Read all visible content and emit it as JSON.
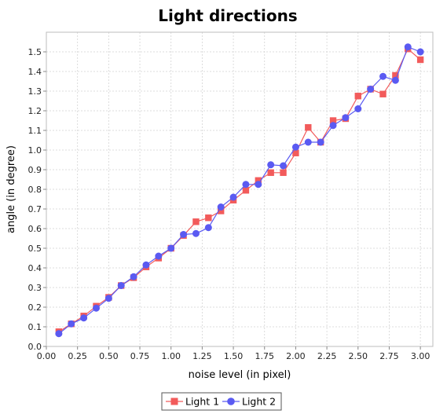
{
  "chart_data": {
    "type": "line",
    "title": "Light directions",
    "xlabel": "noise level (in pixel)",
    "ylabel": "angle (in degree)",
    "xlim": [
      0.0,
      3.1
    ],
    "ylim": [
      0.0,
      1.6
    ],
    "x_ticks": [
      "0.00",
      "0.25",
      "0.50",
      "0.75",
      "1.00",
      "1.25",
      "1.50",
      "1.75",
      "2.00",
      "2.25",
      "2.50",
      "2.75",
      "3.00"
    ],
    "y_ticks": [
      "0.0",
      "0.1",
      "0.2",
      "0.3",
      "0.4",
      "0.5",
      "0.6",
      "0.7",
      "0.8",
      "0.9",
      "1.0",
      "1.1",
      "1.2",
      "1.3",
      "1.4",
      "1.5"
    ],
    "grid": true,
    "legend_position": "bottom",
    "x": [
      0.1,
      0.2,
      0.3,
      0.4,
      0.5,
      0.6,
      0.7,
      0.8,
      0.9,
      1.0,
      1.1,
      1.2,
      1.3,
      1.4,
      1.5,
      1.6,
      1.7,
      1.8,
      1.9,
      2.0,
      2.1,
      2.2,
      2.3,
      2.4,
      2.5,
      2.6,
      2.7,
      2.8,
      2.9,
      3.0
    ],
    "series": [
      {
        "name": "Light 1",
        "color": "#f25b5b",
        "marker": "square",
        "values": [
          0.075,
          0.115,
          0.155,
          0.205,
          0.25,
          0.31,
          0.35,
          0.405,
          0.45,
          0.5,
          0.565,
          0.635,
          0.655,
          0.69,
          0.745,
          0.795,
          0.845,
          0.885,
          0.885,
          0.985,
          1.115,
          1.04,
          1.15,
          1.16,
          1.275,
          1.31,
          1.285,
          1.38,
          1.515,
          1.46
        ]
      },
      {
        "name": "Light 2",
        "color": "#5a5af2",
        "marker": "circle",
        "values": [
          0.065,
          0.115,
          0.145,
          0.195,
          0.245,
          0.31,
          0.355,
          0.415,
          0.46,
          0.5,
          0.57,
          0.575,
          0.605,
          0.71,
          0.76,
          0.825,
          0.825,
          0.925,
          0.92,
          1.015,
          1.04,
          1.04,
          1.125,
          1.165,
          1.21,
          1.31,
          1.375,
          1.355,
          1.525,
          1.5
        ]
      }
    ]
  }
}
